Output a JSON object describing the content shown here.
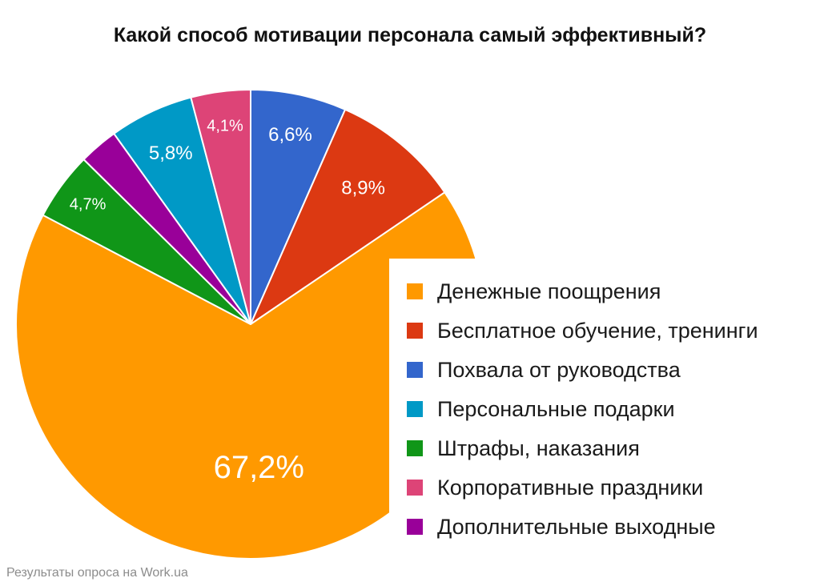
{
  "title": "Какой способ мотивации персонала самый эффективный?",
  "source": "Результаты опроса на Work.ua",
  "chart_data": {
    "type": "pie",
    "title": "Какой способ мотивации персонала самый эффективный?",
    "legend_position": "right",
    "slices": [
      {
        "label": "Денежные поощрения",
        "value": 67.2,
        "value_label": "67,2%",
        "color": "#ff9900"
      },
      {
        "label": "Бесплатное обучение, тренинги",
        "value": 8.9,
        "value_label": "8,9%",
        "color": "#dc3912"
      },
      {
        "label": "Похвала от руководства",
        "value": 6.6,
        "value_label": "6,6%",
        "color": "#3366cc"
      },
      {
        "label": "Персональные подарки",
        "value": 5.8,
        "value_label": "5,8%",
        "color": "#0099c6"
      },
      {
        "label": "Штрафы, наказания",
        "value": 4.7,
        "value_label": "4,7%",
        "color": "#109618"
      },
      {
        "label": "Корпоративные праздники",
        "value": 4.1,
        "value_label": "4,1%",
        "color": "#dd4477"
      },
      {
        "label": "Дополнительные выходные",
        "value": 2.7,
        "value_label": "",
        "color": "#990099"
      }
    ],
    "draw_order": [
      2,
      1,
      0,
      4,
      6,
      3,
      5
    ]
  }
}
